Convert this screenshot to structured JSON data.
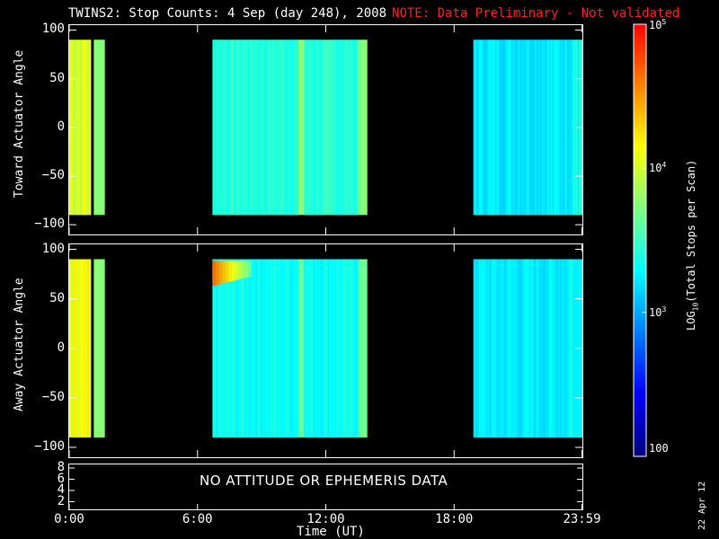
{
  "title": {
    "main": "TWINS2: Stop Counts:  4 Sep (day 248), 2008",
    "note": "NOTE: Data Preliminary - Not validated"
  },
  "colors": {
    "background": "#000000",
    "note": "#ff2020",
    "axis": "#ffffff"
  },
  "chart_data": [
    {
      "type": "heatmap",
      "name": "toward-panel",
      "ylabel": "Toward Actuator Angle",
      "ylim": [
        -110,
        105
      ],
      "yticks": [
        "100",
        "50",
        "0",
        "−50",
        "−100"
      ],
      "ytick_values": [
        100,
        50,
        0,
        -50,
        -100
      ],
      "xlim": [
        0,
        24
      ],
      "angle_range": [
        -90,
        90
      ],
      "data_intervals_hours": [
        [
          0.0,
          1.0
        ],
        [
          1.15,
          1.6
        ],
        [
          6.7,
          13.9
        ],
        [
          18.9,
          24.0
        ]
      ],
      "dominant_level": "~3e3 (cyan/green)"
    },
    {
      "type": "heatmap",
      "name": "away-panel",
      "ylabel": "Away Actuator Angle",
      "ylim": [
        -110,
        105
      ],
      "yticks": [
        "100",
        "50",
        "0",
        "−50",
        "−100"
      ],
      "ytick_values": [
        100,
        50,
        0,
        -50,
        -100
      ],
      "xlim": [
        0,
        24
      ],
      "angle_range": [
        -90,
        90
      ],
      "data_intervals_hours": [
        [
          0.0,
          1.0
        ],
        [
          1.15,
          1.6
        ],
        [
          6.7,
          13.9
        ],
        [
          18.9,
          24.0
        ]
      ],
      "hot_spot": {
        "time_hours": [
          6.7,
          8.5
        ],
        "angle": [
          65,
          90
        ],
        "level": "~5e4 (orange/red)"
      }
    }
  ],
  "bottom_panel": {
    "message": "NO ATTITUDE OR EPHEMERIS DATA",
    "yticks": [
      "8",
      "6",
      "4",
      "2"
    ]
  },
  "xaxis": {
    "ticks": [
      "0:00",
      "6:00",
      "12:00",
      "18:00",
      "23:59"
    ],
    "tick_values": [
      0,
      6,
      12,
      18,
      23.98
    ],
    "label": "Time (UT)"
  },
  "colorbar": {
    "label": "LOG10(Total Stops per Scan)",
    "tick_labels": [
      "10^5",
      "10^4",
      "10^3",
      "100"
    ],
    "tick_values": [
      100000,
      10000,
      1000,
      100
    ],
    "scale": "log",
    "colors": [
      "#00007f",
      "#0000ff",
      "#007fff",
      "#00ffff",
      "#7fff7f",
      "#ffff00",
      "#ff7f00",
      "#ff0000"
    ]
  },
  "date_stamp": "22 Apr 12"
}
